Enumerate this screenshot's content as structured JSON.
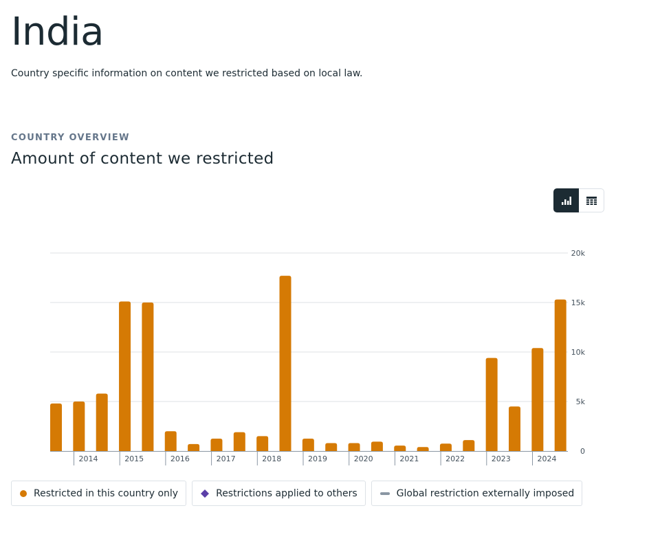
{
  "page": {
    "title": "India",
    "subtitle": "Country specific information on content we restricted based on local law."
  },
  "section": {
    "eyebrow": "COUNTRY OVERVIEW",
    "heading": "Amount of content we restricted"
  },
  "view_toggle": {
    "selected": "chart",
    "options": [
      {
        "id": "chart",
        "icon": "bar-chart-icon"
      },
      {
        "id": "table",
        "icon": "table-icon"
      }
    ]
  },
  "colors": {
    "series1": "#d57a04",
    "series2": "#5b3fa8",
    "series3": "#8a96a3",
    "grid": "#dce1e6"
  },
  "chart_data": {
    "type": "bar",
    "title": "",
    "xlabel": "",
    "ylabel": "",
    "ylim": [
      0,
      20000
    ],
    "y_ticks": [
      {
        "v": 0,
        "l": "0"
      },
      {
        "v": 5000,
        "l": "5k"
      },
      {
        "v": 10000,
        "l": "10k"
      },
      {
        "v": 15000,
        "l": "15k"
      },
      {
        "v": 20000,
        "l": "20k"
      }
    ],
    "x_tick_labels": [
      "2014",
      "2015",
      "2016",
      "2017",
      "2018",
      "2019",
      "2020",
      "2021",
      "2022",
      "2023",
      "2024"
    ],
    "grid": true,
    "legend_position": "bottom",
    "series": [
      {
        "name": "Restricted in this country only",
        "marker": "circle",
        "values": [
          4800,
          5000,
          5800,
          15100,
          15000,
          2000,
          700,
          1250,
          1900,
          1500,
          17700,
          1250,
          800,
          800,
          950,
          550,
          400,
          750,
          1100,
          9400,
          4500,
          10400,
          15300
        ]
      },
      {
        "name": "Restrictions applied to others",
        "marker": "diamond",
        "values": []
      },
      {
        "name": "Global restriction externally imposed",
        "marker": "dash",
        "values": []
      }
    ]
  }
}
